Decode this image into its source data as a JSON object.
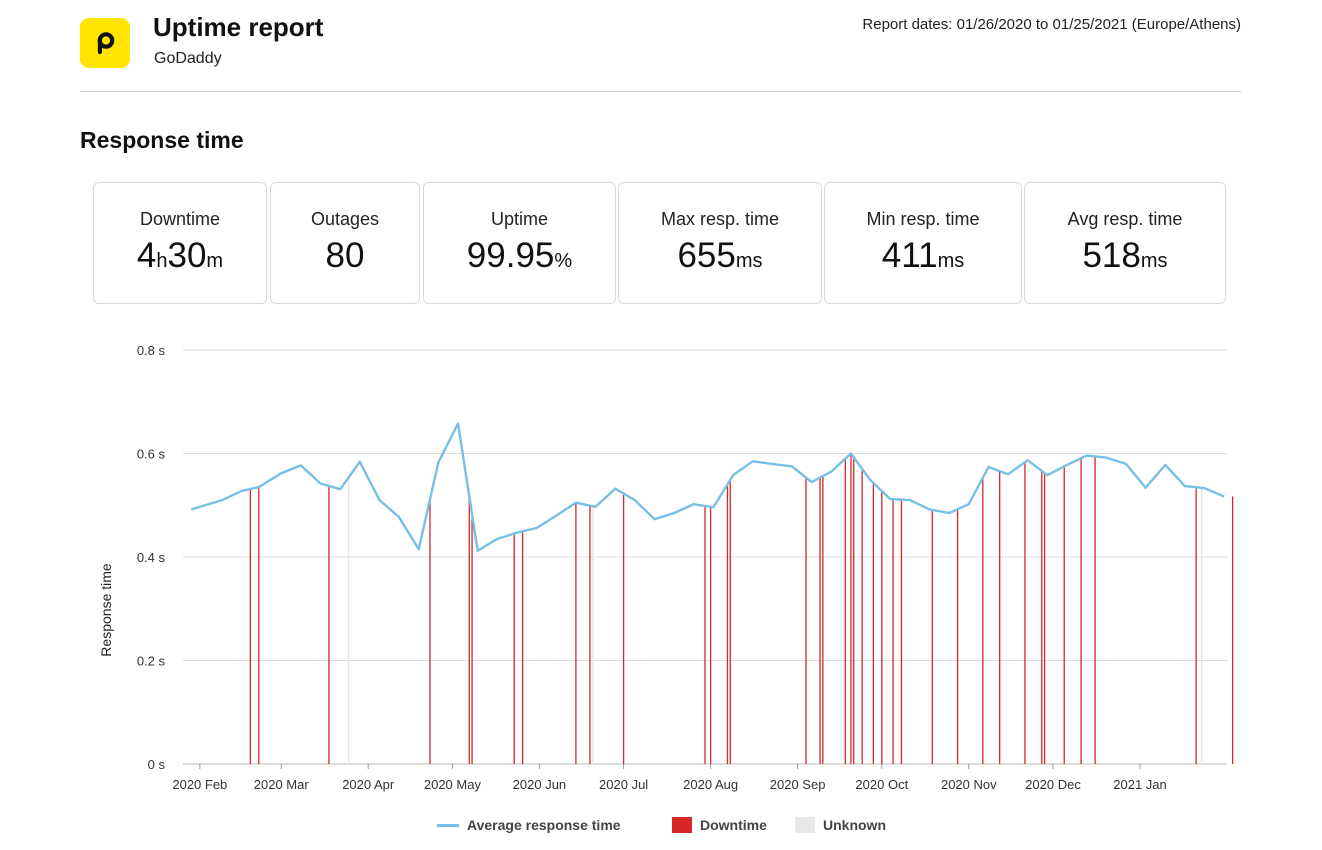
{
  "header": {
    "title": "Uptime report",
    "subtitle": "GoDaddy",
    "report_dates": "Report dates: 01/26/2020 to 01/25/2021 (Europe/Athens)"
  },
  "section_title": "Response time",
  "stats": [
    {
      "label": "Downtime",
      "parts": [
        {
          "t": "4",
          "u": false
        },
        {
          "t": "h",
          "u": true
        },
        {
          "t": "30",
          "u": false
        },
        {
          "t": "m",
          "u": true
        }
      ]
    },
    {
      "label": "Outages",
      "parts": [
        {
          "t": "80",
          "u": false
        }
      ]
    },
    {
      "label": "Uptime",
      "parts": [
        {
          "t": "99.95",
          "u": false
        },
        {
          "t": "%",
          "u": true
        }
      ]
    },
    {
      "label": "Max resp. time",
      "parts": [
        {
          "t": "655",
          "u": false
        },
        {
          "t": "ms",
          "u": true
        }
      ]
    },
    {
      "label": "Min resp. time",
      "parts": [
        {
          "t": "411",
          "u": false
        },
        {
          "t": "ms",
          "u": true
        }
      ]
    },
    {
      "label": "Avg resp. time",
      "parts": [
        {
          "t": "518",
          "u": false
        },
        {
          "t": "ms",
          "u": true
        }
      ]
    }
  ],
  "colors": {
    "line": "#78bfe6",
    "downtime": "#d62728",
    "unknown": "#e8e8e8",
    "grid": "#dddddd",
    "logo": "#ffe500"
  },
  "chart_data": {
    "type": "line",
    "ylabel": "Response time",
    "yticks": [
      "0 s",
      "0.2 s",
      "0.4 s",
      "0.6 s",
      "0.8 s"
    ],
    "ylim": [
      0,
      0.8
    ],
    "xlim": [
      "2020-01-26",
      "2021-01-25"
    ],
    "xticks": [
      {
        "date": "2020-02-01",
        "label": "2020 Feb"
      },
      {
        "date": "2020-03-01",
        "label": "2020 Mar"
      },
      {
        "date": "2020-04-01",
        "label": "2020 Apr"
      },
      {
        "date": "2020-05-01",
        "label": "2020 May"
      },
      {
        "date": "2020-06-01",
        "label": "2020 Jun"
      },
      {
        "date": "2020-07-01",
        "label": "2020 Jul"
      },
      {
        "date": "2020-08-01",
        "label": "2020 Aug"
      },
      {
        "date": "2020-09-01",
        "label": "2020 Sep"
      },
      {
        "date": "2020-10-01",
        "label": "2020 Oct"
      },
      {
        "date": "2020-11-01",
        "label": "2020 Nov"
      },
      {
        "date": "2020-12-01",
        "label": "2020 Dec"
      },
      {
        "date": "2021-01-01",
        "label": "2021 Jan"
      }
    ],
    "grid": true,
    "legend_position": "bottom",
    "series": [
      {
        "name": "Average response time",
        "points": [
          [
            "2020-01-29",
            0.492
          ],
          [
            "2020-02-09",
            0.51
          ],
          [
            "2020-02-16",
            0.528
          ],
          [
            "2020-02-22",
            0.535
          ],
          [
            "2020-03-01",
            0.562
          ],
          [
            "2020-03-08",
            0.577
          ],
          [
            "2020-03-15",
            0.542
          ],
          [
            "2020-03-22",
            0.531
          ],
          [
            "2020-03-29",
            0.584
          ],
          [
            "2020-04-05",
            0.51
          ],
          [
            "2020-04-12",
            0.477
          ],
          [
            "2020-04-19",
            0.415
          ],
          [
            "2020-04-26",
            0.583
          ],
          [
            "2020-05-03",
            0.658
          ],
          [
            "2020-05-10",
            0.412
          ],
          [
            "2020-05-17",
            0.435
          ],
          [
            "2020-05-24",
            0.447
          ],
          [
            "2020-05-31",
            0.456
          ],
          [
            "2020-06-07",
            0.48
          ],
          [
            "2020-06-14",
            0.505
          ],
          [
            "2020-06-21",
            0.497
          ],
          [
            "2020-06-28",
            0.532
          ],
          [
            "2020-07-05",
            0.51
          ],
          [
            "2020-07-12",
            0.473
          ],
          [
            "2020-07-19",
            0.485
          ],
          [
            "2020-07-26",
            0.502
          ],
          [
            "2020-08-02",
            0.496
          ],
          [
            "2020-08-09",
            0.558
          ],
          [
            "2020-08-16",
            0.585
          ],
          [
            "2020-08-23",
            0.58
          ],
          [
            "2020-08-30",
            0.575
          ],
          [
            "2020-09-06",
            0.545
          ],
          [
            "2020-09-13",
            0.565
          ],
          [
            "2020-09-20",
            0.6
          ],
          [
            "2020-09-27",
            0.548
          ],
          [
            "2020-10-04",
            0.512
          ],
          [
            "2020-10-11",
            0.51
          ],
          [
            "2020-10-18",
            0.492
          ],
          [
            "2020-10-25",
            0.485
          ],
          [
            "2020-11-01",
            0.502
          ],
          [
            "2020-11-08",
            0.574
          ],
          [
            "2020-11-15",
            0.56
          ],
          [
            "2020-11-22",
            0.587
          ],
          [
            "2020-11-29",
            0.558
          ],
          [
            "2020-12-06",
            0.578
          ],
          [
            "2020-12-13",
            0.596
          ],
          [
            "2020-12-20",
            0.592
          ],
          [
            "2020-12-27",
            0.58
          ],
          [
            "2021-01-03",
            0.534
          ],
          [
            "2021-01-10",
            0.578
          ],
          [
            "2021-01-17",
            0.537
          ],
          [
            "2021-01-24",
            0.533
          ],
          [
            "2021-01-31",
            0.517
          ]
        ]
      }
    ],
    "downtime_dates": [
      "2020-02-19",
      "2020-02-22",
      "2020-03-18",
      "2020-04-23",
      "2020-05-07",
      "2020-05-08",
      "2020-05-23",
      "2020-05-26",
      "2020-06-14",
      "2020-06-19",
      "2020-07-01",
      "2020-07-30",
      "2020-08-01",
      "2020-08-07",
      "2020-08-08",
      "2020-09-04",
      "2020-09-09",
      "2020-09-10",
      "2020-09-18",
      "2020-09-20",
      "2020-09-21",
      "2020-09-24",
      "2020-09-28",
      "2020-10-01",
      "2020-10-05",
      "2020-10-08",
      "2020-10-19",
      "2020-10-28",
      "2020-11-06",
      "2020-11-12",
      "2020-11-21",
      "2020-11-27",
      "2020-11-28",
      "2020-12-05",
      "2020-12-11",
      "2020-12-16",
      "2021-01-21",
      "2021-02-03"
    ],
    "unknown_dates": [
      "2020-03-25",
      "2020-06-20",
      "2021-01-23"
    ],
    "legend": [
      {
        "label": "Average response time",
        "kind": "line"
      },
      {
        "label": "Downtime",
        "kind": "box-downtime"
      },
      {
        "label": "Unknown",
        "kind": "box-unknown"
      }
    ]
  }
}
